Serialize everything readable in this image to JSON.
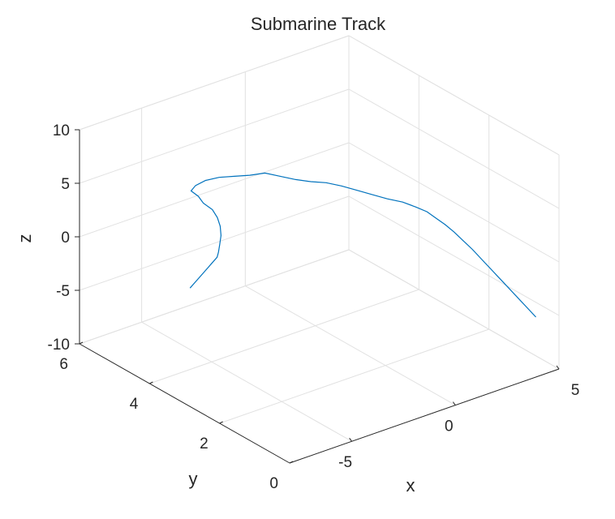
{
  "chart_data": {
    "type": "line",
    "projection": "3d",
    "title": "Submarine Track",
    "xlabel": "x",
    "ylabel": "y",
    "zlabel": "z",
    "xlim": [
      -8,
      5
    ],
    "ylim": [
      0,
      6
    ],
    "zlim": [
      -10,
      10
    ],
    "x_ticks": [
      "-5",
      "0",
      "5"
    ],
    "y_ticks": [
      "0",
      "2",
      "4",
      "6"
    ],
    "z_ticks": [
      "-10",
      "-5",
      "0",
      "5",
      "10"
    ],
    "grid": true,
    "box": false,
    "line_color": "#0072BD",
    "series": [
      {
        "points": [
          [
            -7.4,
            3.2,
            0.0
          ],
          [
            -6.8,
            3.4,
            -0.2
          ],
          [
            -6.2,
            3.6,
            -0.4
          ],
          [
            -5.6,
            3.8,
            -0.6
          ],
          [
            -5.0,
            4.0,
            -0.8
          ],
          [
            -4.4,
            4.2,
            -1.0
          ],
          [
            -4.0,
            4.4,
            -1.2
          ],
          [
            -3.6,
            4.6,
            -1.1
          ],
          [
            -3.2,
            4.8,
            -0.9
          ],
          [
            -2.9,
            5.0,
            -0.6
          ],
          [
            -2.7,
            5.2,
            -0.3
          ],
          [
            -2.6,
            5.4,
            0.0
          ],
          [
            -2.7,
            5.6,
            0.3
          ],
          [
            -2.6,
            5.8,
            0.5
          ],
          [
            -2.7,
            5.95,
            0.8
          ],
          [
            -2.4,
            6.0,
            1.0
          ],
          [
            -2.0,
            5.95,
            1.3
          ],
          [
            -1.6,
            5.8,
            1.6
          ],
          [
            -1.2,
            5.6,
            1.8
          ],
          [
            -0.8,
            5.4,
            2.0
          ],
          [
            -0.4,
            5.2,
            2.3
          ],
          [
            0.0,
            5.0,
            2.1
          ],
          [
            0.4,
            4.8,
            1.9
          ],
          [
            0.8,
            4.6,
            1.8
          ],
          [
            1.2,
            4.4,
            1.8
          ],
          [
            1.6,
            4.2,
            1.6
          ],
          [
            2.0,
            4.0,
            1.3
          ],
          [
            2.4,
            3.8,
            1.0
          ],
          [
            2.8,
            3.6,
            0.7
          ],
          [
            3.2,
            3.4,
            0.5
          ],
          [
            3.5,
            3.2,
            0.2
          ],
          [
            3.7,
            3.0,
            0.0
          ],
          [
            3.8,
            2.8,
            -0.3
          ],
          [
            3.9,
            2.6,
            -0.6
          ],
          [
            4.0,
            2.4,
            -1.0
          ],
          [
            4.1,
            2.2,
            -1.5
          ],
          [
            4.2,
            2.0,
            -2.0
          ],
          [
            4.3,
            1.8,
            -2.6
          ],
          [
            4.4,
            1.6,
            -3.2
          ],
          [
            4.5,
            1.4,
            -3.8
          ],
          [
            4.6,
            1.2,
            -4.4
          ],
          [
            4.7,
            1.0,
            -5.0
          ],
          [
            4.8,
            0.8,
            -5.6
          ],
          [
            4.9,
            0.6,
            -6.2
          ]
        ]
      }
    ]
  }
}
